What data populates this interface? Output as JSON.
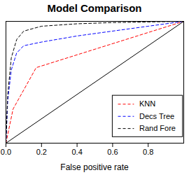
{
  "chart_data": {
    "type": "line",
    "title": "Model Comparison",
    "x_label": "False positive rate",
    "xlim": [
      0,
      1
    ],
    "ylim": [
      0,
      1
    ],
    "xticks": [
      {
        "value": 0,
        "label": "0.0"
      },
      {
        "value": 0.2,
        "label": "0.2"
      },
      {
        "value": 0.4,
        "label": "0.4"
      },
      {
        "value": 0.6,
        "label": "0.6"
      },
      {
        "value": 0.8,
        "label": "0.8"
      }
    ],
    "tick_labels": "x",
    "legend": "bottom-right",
    "series": [
      {
        "name": "KNN",
        "color": "#ff0000",
        "line_style": "dashed",
        "x": [
          0,
          0.04,
          0.17,
          1
        ],
        "values": [
          0,
          0.28,
          0.62,
          1
        ]
      },
      {
        "name": "Decs Tree",
        "color": "#0000ff",
        "line_style": "dashed",
        "x": [
          0,
          0.01,
          0.03,
          0.06,
          0.1,
          0.2,
          0.4,
          0.6,
          0.8,
          1
        ],
        "values": [
          0,
          0.35,
          0.6,
          0.74,
          0.8,
          0.83,
          0.88,
          0.92,
          0.96,
          1
        ]
      },
      {
        "name": "Rand Fore",
        "color": "#000000",
        "line_style": "dashed",
        "x": [
          0,
          0.01,
          0.03,
          0.06,
          0.1,
          0.2,
          0.4,
          0.6,
          0.8,
          1
        ],
        "values": [
          0,
          0.4,
          0.7,
          0.85,
          0.92,
          0.96,
          0.98,
          0.99,
          0.995,
          1
        ]
      },
      {
        "color": "#000000",
        "line_style": "solid",
        "x": [
          0,
          1
        ],
        "values": [
          0,
          1
        ]
      }
    ]
  }
}
